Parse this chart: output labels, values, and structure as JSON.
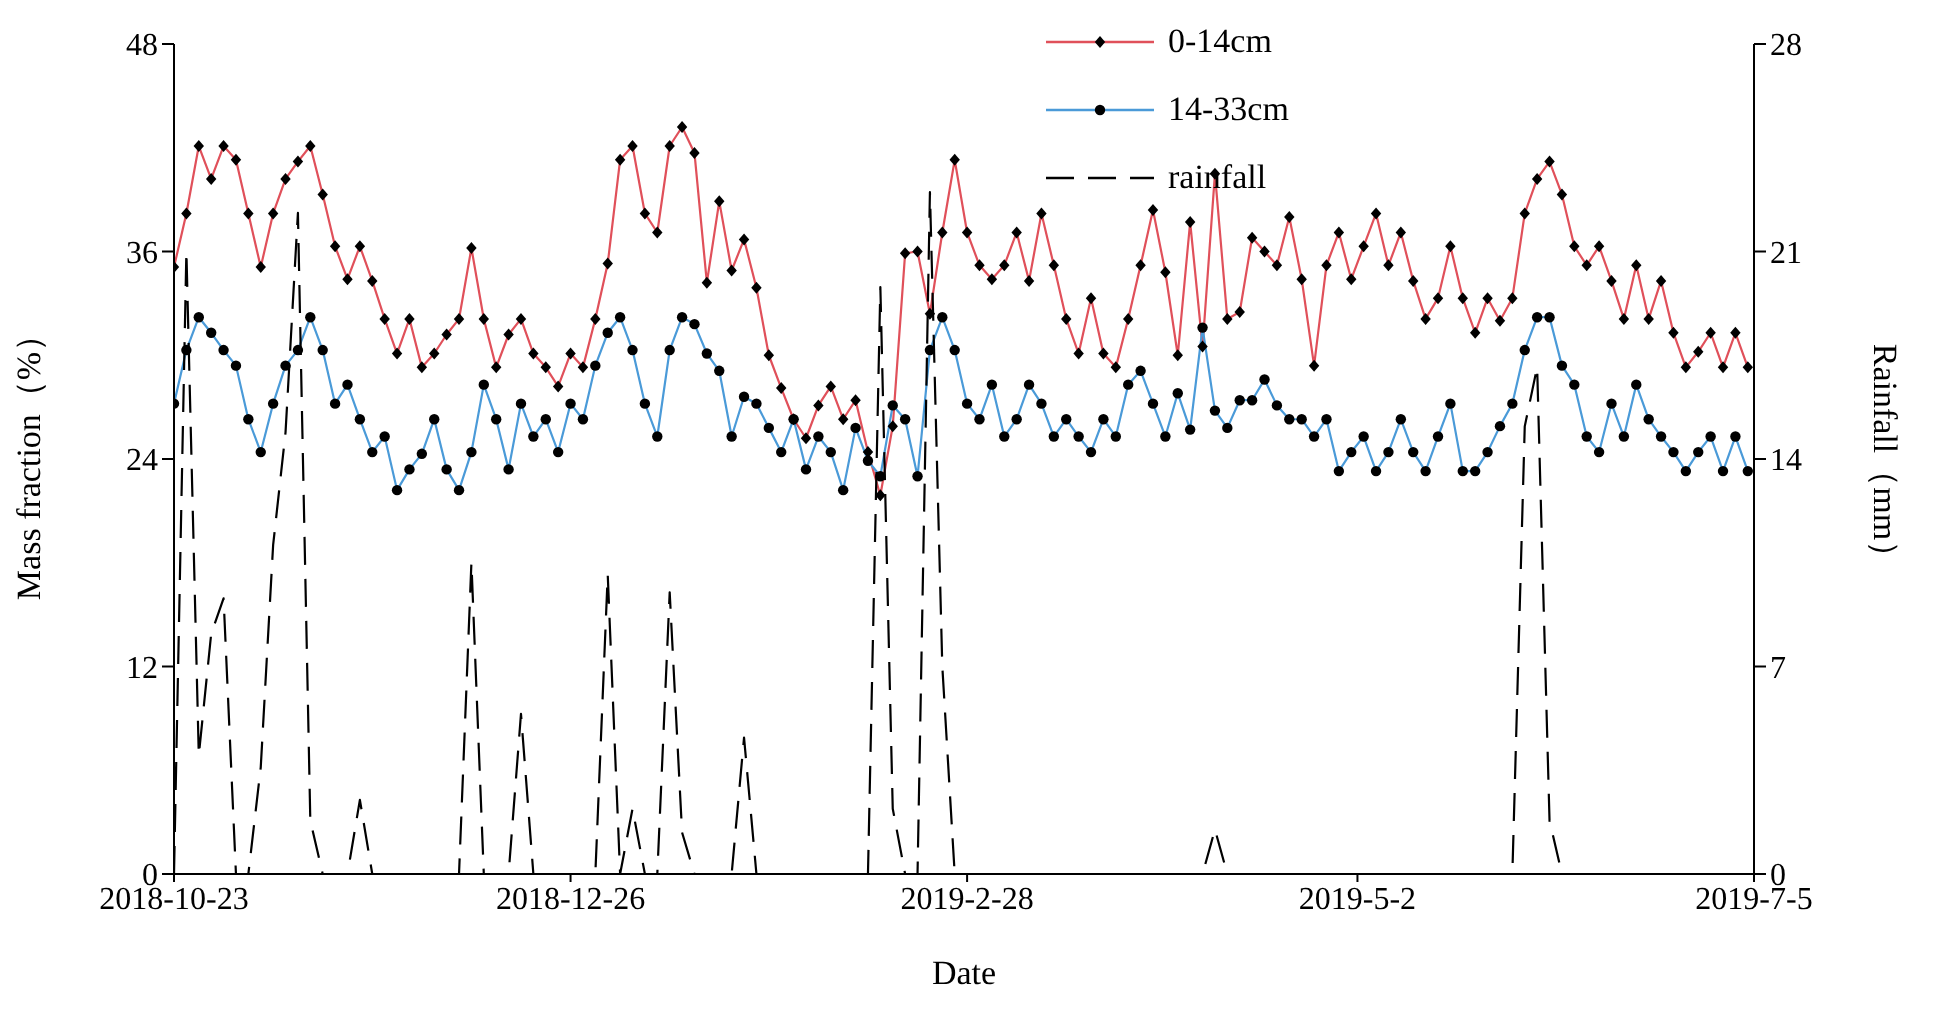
{
  "chart_data": {
    "type": "line",
    "xlabel": "Date",
    "ylabel": "Mass fraction（%）",
    "y2label": "Rainfall（mm）",
    "x": [
      "2018-10-23",
      "2018-10-25",
      "2018-10-27",
      "2018-10-29",
      "2018-10-31",
      "2018-11-02",
      "2018-11-04",
      "2018-11-06",
      "2018-11-08",
      "2018-11-10",
      "2018-11-12",
      "2018-11-14",
      "2018-11-16",
      "2018-11-18",
      "2018-11-20",
      "2018-11-22",
      "2018-11-24",
      "2018-11-26",
      "2018-11-28",
      "2018-11-30",
      "2018-12-02",
      "2018-12-04",
      "2018-12-06",
      "2018-12-08",
      "2018-12-10",
      "2018-12-12",
      "2018-12-14",
      "2018-12-16",
      "2018-12-18",
      "2018-12-20",
      "2018-12-22",
      "2018-12-24",
      "2018-12-26",
      "2018-12-28",
      "2018-12-30",
      "2019-01-01",
      "2019-01-03",
      "2019-01-05",
      "2019-01-07",
      "2019-01-09",
      "2019-01-11",
      "2019-01-13",
      "2019-01-15",
      "2019-01-17",
      "2019-01-19",
      "2019-01-21",
      "2019-01-23",
      "2019-01-25",
      "2019-01-27",
      "2019-01-29",
      "2019-01-31",
      "2019-02-02",
      "2019-02-04",
      "2019-02-06",
      "2019-02-08",
      "2019-02-10",
      "2019-02-12",
      "2019-02-14",
      "2019-02-16",
      "2019-02-18",
      "2019-02-20",
      "2019-02-22",
      "2019-02-24",
      "2019-02-26",
      "2019-02-28",
      "2019-03-02",
      "2019-03-04",
      "2019-03-06",
      "2019-03-08",
      "2019-03-10",
      "2019-03-12",
      "2019-03-14",
      "2019-03-16",
      "2019-03-18",
      "2019-03-20",
      "2019-03-22",
      "2019-03-24",
      "2019-03-26",
      "2019-03-28",
      "2019-03-30",
      "2019-04-01",
      "2019-04-03",
      "2019-04-05",
      "2019-04-07",
      "2019-04-09",
      "2019-04-11",
      "2019-04-13",
      "2019-04-15",
      "2019-04-17",
      "2019-04-19",
      "2019-04-21",
      "2019-04-23",
      "2019-04-25",
      "2019-04-27",
      "2019-04-29",
      "2019-05-01",
      "2019-05-03",
      "2019-05-05",
      "2019-05-07",
      "2019-05-09",
      "2019-05-11",
      "2019-05-13",
      "2019-05-15",
      "2019-05-17",
      "2019-05-19",
      "2019-05-21",
      "2019-05-23",
      "2019-05-25",
      "2019-05-27",
      "2019-05-29",
      "2019-05-31",
      "2019-06-02",
      "2019-06-04",
      "2019-06-06",
      "2019-06-08",
      "2019-06-10",
      "2019-06-12",
      "2019-06-14",
      "2019-06-16",
      "2019-06-18",
      "2019-06-20",
      "2019-06-22",
      "2019-06-24",
      "2019-06-26",
      "2019-06-28",
      "2019-06-30",
      "2019-07-02",
      "2019-07-04"
    ],
    "series": [
      {
        "name": "0-14cm",
        "color": "#e0505a",
        "marker": "diamond",
        "line_style": "solid",
        "values": [
          35.1,
          38.2,
          42.1,
          40.2,
          42.1,
          41.3,
          38.2,
          35.1,
          38.2,
          40.2,
          41.2,
          42.1,
          39.3,
          36.3,
          34.4,
          36.3,
          34.3,
          32.1,
          30.1,
          32.1,
          29.3,
          30.1,
          31.2,
          32.1,
          36.2,
          32.1,
          29.3,
          31.2,
          32.1,
          30.1,
          29.3,
          28.2,
          30.1,
          29.3,
          32.1,
          35.3,
          41.3,
          42.1,
          38.2,
          37.1,
          42.1,
          43.2,
          41.7,
          34.2,
          38.9,
          34.9,
          36.7,
          33.9,
          30.0,
          28.1,
          26.3,
          25.2,
          27.1,
          28.2,
          26.3,
          27.4,
          24.4,
          21.9,
          25.9,
          35.9,
          36.0,
          32.4,
          37.1,
          41.3,
          37.1,
          35.2,
          34.4,
          35.2,
          37.1,
          34.3,
          38.2,
          35.2,
          32.1,
          30.1,
          33.3,
          30.1,
          29.3,
          32.1,
          35.2,
          38.4,
          34.8,
          30.0,
          37.7,
          30.5,
          40.5,
          32.1,
          32.5,
          36.8,
          36.0,
          35.2,
          38.0,
          34.4,
          29.4,
          35.2,
          37.1,
          34.4,
          36.3,
          38.2,
          35.2,
          37.1,
          34.3,
          32.1,
          33.3,
          36.3,
          33.3,
          31.3,
          33.3,
          32.0,
          33.3,
          38.2,
          40.2,
          41.2,
          39.3,
          36.3,
          35.2,
          36.3,
          34.3,
          32.1,
          35.2,
          32.1,
          34.3,
          31.3,
          29.3,
          30.2,
          31.3,
          29.3,
          31.3,
          29.3
        ]
      },
      {
        "name": "14-33cm",
        "color": "#4a9ad8",
        "marker": "circle",
        "line_style": "solid",
        "values": [
          27.2,
          30.3,
          32.2,
          31.3,
          30.3,
          29.4,
          26.3,
          24.4,
          27.2,
          29.4,
          30.3,
          32.2,
          30.3,
          27.2,
          28.3,
          26.3,
          24.4,
          25.3,
          22.2,
          23.4,
          24.3,
          26.3,
          23.4,
          22.2,
          24.4,
          28.3,
          26.3,
          23.4,
          27.2,
          25.3,
          26.3,
          24.4,
          27.2,
          26.3,
          29.4,
          31.3,
          32.2,
          30.3,
          27.2,
          25.3,
          30.3,
          32.2,
          31.8,
          30.1,
          29.1,
          25.3,
          27.6,
          27.2,
          25.8,
          24.4,
          26.3,
          23.4,
          25.3,
          24.4,
          22.2,
          25.8,
          23.9,
          23.0,
          27.1,
          26.3,
          23.0,
          30.3,
          32.2,
          30.3,
          27.2,
          26.3,
          28.3,
          25.3,
          26.3,
          28.3,
          27.2,
          25.3,
          26.3,
          25.3,
          24.4,
          26.3,
          25.3,
          28.3,
          29.1,
          27.2,
          25.3,
          27.8,
          25.7,
          31.6,
          26.8,
          25.8,
          27.4,
          27.4,
          28.6,
          27.1,
          26.3,
          26.3,
          25.3,
          26.3,
          23.3,
          24.4,
          25.3,
          23.3,
          24.4,
          26.3,
          24.4,
          23.3,
          25.3,
          27.2,
          23.3,
          23.3,
          24.4,
          25.9,
          27.2,
          30.3,
          32.2,
          32.2,
          29.4,
          28.3,
          25.3,
          24.4,
          27.2,
          25.3,
          28.3,
          26.3,
          25.3,
          24.4,
          23.3,
          24.4,
          25.3,
          23.3,
          25.3,
          23.3
        ]
      },
      {
        "name": "rainfall",
        "color": "#000000",
        "axis": "y2",
        "marker": "none",
        "line_style": "dashed",
        "values": [
          0,
          21.0,
          4.0,
          8.1,
          9.3,
          0,
          0,
          3.6,
          11.1,
          14.9,
          22.3,
          1.8,
          0,
          0,
          0,
          2.5,
          0,
          0,
          0,
          0,
          0,
          0,
          0,
          0,
          10.5,
          0,
          0,
          0,
          5.4,
          0,
          0,
          0,
          0,
          0,
          0,
          10.1,
          0,
          2.2,
          0,
          0,
          9.5,
          1.4,
          0,
          0,
          0,
          0,
          4.6,
          0,
          0,
          0,
          0,
          0,
          0,
          0,
          0,
          0,
          0,
          19.8,
          2.2,
          0,
          0,
          23.0,
          7.0,
          0,
          0,
          0,
          0,
          0,
          0,
          0,
          0,
          0,
          0,
          0,
          0,
          0,
          0,
          0,
          0,
          0,
          0,
          0,
          0,
          0,
          1.5,
          0,
          0,
          0,
          0,
          0,
          0,
          0,
          0,
          0,
          0,
          0,
          0,
          0,
          0,
          0,
          0,
          0,
          0,
          0,
          0,
          0,
          0,
          0,
          0,
          15.1,
          17.1,
          1.8,
          0,
          0,
          0,
          0,
          0,
          0,
          0,
          0,
          0,
          0,
          0,
          0,
          0,
          0,
          0,
          0
        ]
      }
    ],
    "xlim": [
      "2018-10-23",
      "2019-07-05"
    ],
    "xticks": [
      "2018-10-23",
      {
        "value": "2018-12-26",
        "label": "2018-12-26"
      },
      {
        "value": "2019-02-28",
        "label": "2019-2-28"
      },
      {
        "value": "2019-05-02",
        "label": "2019-5-2"
      },
      {
        "value": "2019-07-05",
        "label": "2019-7-5"
      }
    ],
    "ylim": [
      0,
      48
    ],
    "yticks": [
      0,
      12,
      24,
      36,
      48
    ],
    "y2lim": [
      0,
      28
    ],
    "y2ticks": [
      0,
      7,
      14,
      21,
      28
    ],
    "grid": false,
    "legend": "top"
  }
}
